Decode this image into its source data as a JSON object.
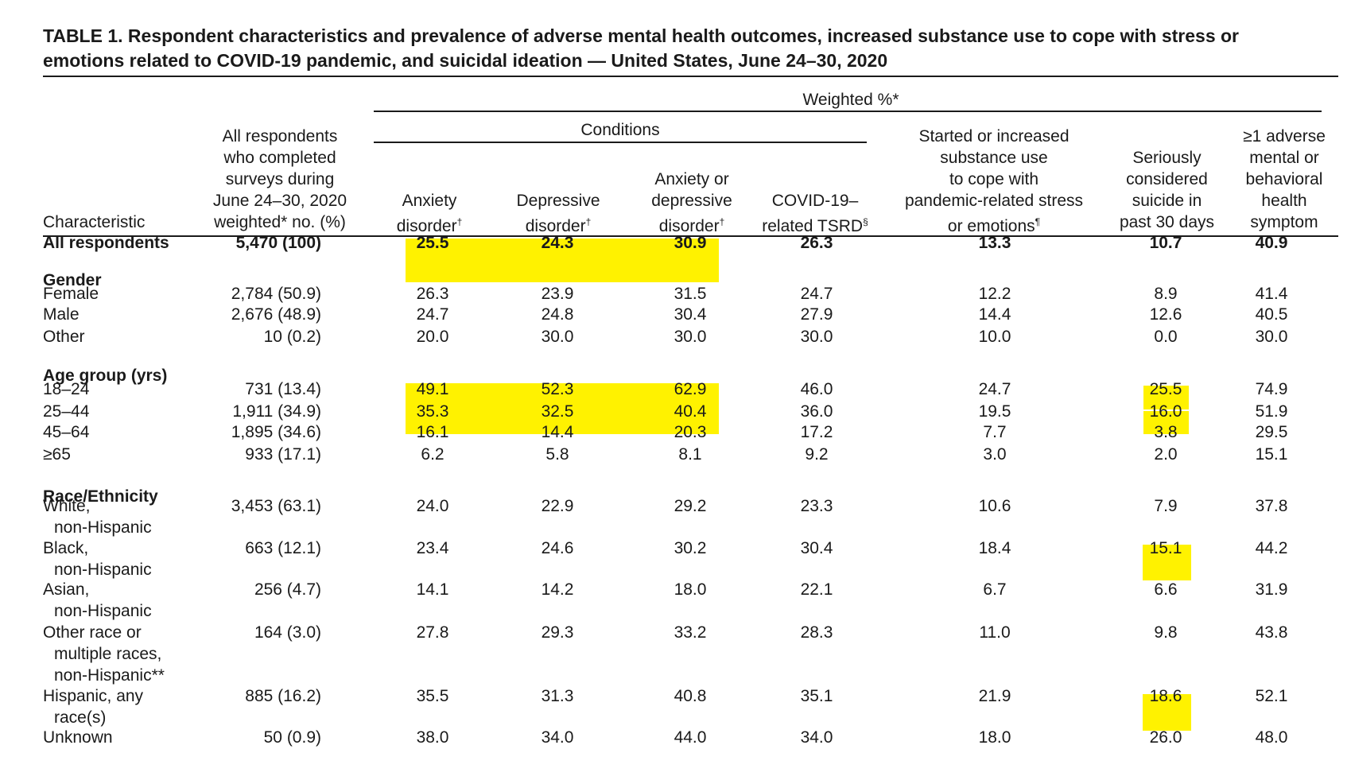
{
  "title": {
    "line1": "TABLE 1. Respondent characteristics and prevalence of adverse mental health outcomes, increased substance use to cope with stress or",
    "line2": "emotions related to COVID-19 pandemic, and suicidal ideation — United States, June 24–30, 2020"
  },
  "headers": {
    "weighted": "Weighted %*",
    "conditions": "Conditions",
    "characteristic": "Characteristic",
    "all_resp": [
      "All respondents",
      "who completed",
      "surveys during",
      "June 24–30, 2020",
      "weighted* no. (%)"
    ],
    "anxiety": [
      "Anxiety",
      "disorder"
    ],
    "depressive": [
      "Depressive",
      "disorder"
    ],
    "anx_or_dep": [
      "Anxiety or",
      "depressive",
      "disorder"
    ],
    "tsrd": [
      "COVID-19–",
      "related TSRD"
    ],
    "substance": [
      "Started or increased",
      "substance use",
      "to cope with",
      "pandemic-related stress",
      "or emotions"
    ],
    "suicide": [
      "Seriously",
      "considered",
      "suicide in",
      "past 30 days"
    ],
    "adverse": [
      "≥1 adverse",
      "mental or",
      "behavioral",
      "health",
      "symptom"
    ],
    "marks": {
      "dagger": "†",
      "section": "§",
      "para": "¶"
    }
  },
  "sections": {
    "gender": "Gender",
    "age": "Age group (yrs)",
    "race": "Race/Ethnicity"
  },
  "rows": [
    {
      "label": [
        "All respondents"
      ],
      "n": "5,470 (100)",
      "vals": [
        "25.5",
        "24.3",
        "30.9",
        "26.3",
        "13.3",
        "10.7",
        "40.9"
      ]
    },
    {
      "label": [
        "Female"
      ],
      "n": "2,784 (50.9)",
      "vals": [
        "26.3",
        "23.9",
        "31.5",
        "24.7",
        "12.2",
        "8.9",
        "41.4"
      ]
    },
    {
      "label": [
        "Male"
      ],
      "n": "2,676 (48.9)",
      "vals": [
        "24.7",
        "24.8",
        "30.4",
        "27.9",
        "14.4",
        "12.6",
        "40.5"
      ]
    },
    {
      "label": [
        "Other"
      ],
      "n": "10 (0.2)",
      "vals": [
        "20.0",
        "30.0",
        "30.0",
        "30.0",
        "10.0",
        "0.0",
        "30.0"
      ]
    },
    {
      "label": [
        "18–24"
      ],
      "n": "731 (13.4)",
      "vals": [
        "49.1",
        "52.3",
        "62.9",
        "46.0",
        "24.7",
        "25.5",
        "74.9"
      ]
    },
    {
      "label": [
        "25–44"
      ],
      "n": "1,911 (34.9)",
      "vals": [
        "35.3",
        "32.5",
        "40.4",
        "36.0",
        "19.5",
        "16.0",
        "51.9"
      ]
    },
    {
      "label": [
        "45–64"
      ],
      "n": "1,895 (34.6)",
      "vals": [
        "16.1",
        "14.4",
        "20.3",
        "17.2",
        "7.7",
        "3.8",
        "29.5"
      ]
    },
    {
      "label": [
        "≥65"
      ],
      "n": "933 (17.1)",
      "vals": [
        "6.2",
        "5.8",
        "8.1",
        "9.2",
        "3.0",
        "2.0",
        "15.1"
      ]
    },
    {
      "label": [
        "White,",
        "non-Hispanic"
      ],
      "n": "3,453 (63.1)",
      "vals": [
        "24.0",
        "22.9",
        "29.2",
        "23.3",
        "10.6",
        "7.9",
        "37.8"
      ]
    },
    {
      "label": [
        "Black,",
        "non-Hispanic"
      ],
      "n": "663 (12.1)",
      "vals": [
        "23.4",
        "24.6",
        "30.2",
        "30.4",
        "18.4",
        "15.1",
        "44.2"
      ]
    },
    {
      "label": [
        "Asian,",
        "non-Hispanic"
      ],
      "n": "256 (4.7)",
      "vals": [
        "14.1",
        "14.2",
        "18.0",
        "22.1",
        "6.7",
        "6.6",
        "31.9"
      ]
    },
    {
      "label": [
        "Other race or",
        "multiple races,",
        "non-Hispanic**"
      ],
      "n": "164 (3.0)",
      "vals": [
        "27.8",
        "29.3",
        "33.2",
        "28.3",
        "11.0",
        "9.8",
        "43.8"
      ]
    },
    {
      "label": [
        "Hispanic, any",
        "race(s)"
      ],
      "n": "885 (16.2)",
      "vals": [
        "35.5",
        "31.3",
        "40.8",
        "35.1",
        "21.9",
        "18.6",
        "52.1"
      ]
    },
    {
      "label": [
        "Unknown"
      ],
      "n": "50 (0.9)",
      "vals": [
        "38.0",
        "34.0",
        "44.0",
        "34.0",
        "18.0",
        "26.0",
        "48.0"
      ]
    }
  ],
  "colors": {
    "highlight": "#fff200",
    "text": "#1a1a1a",
    "rule": "#1a1a1a"
  }
}
